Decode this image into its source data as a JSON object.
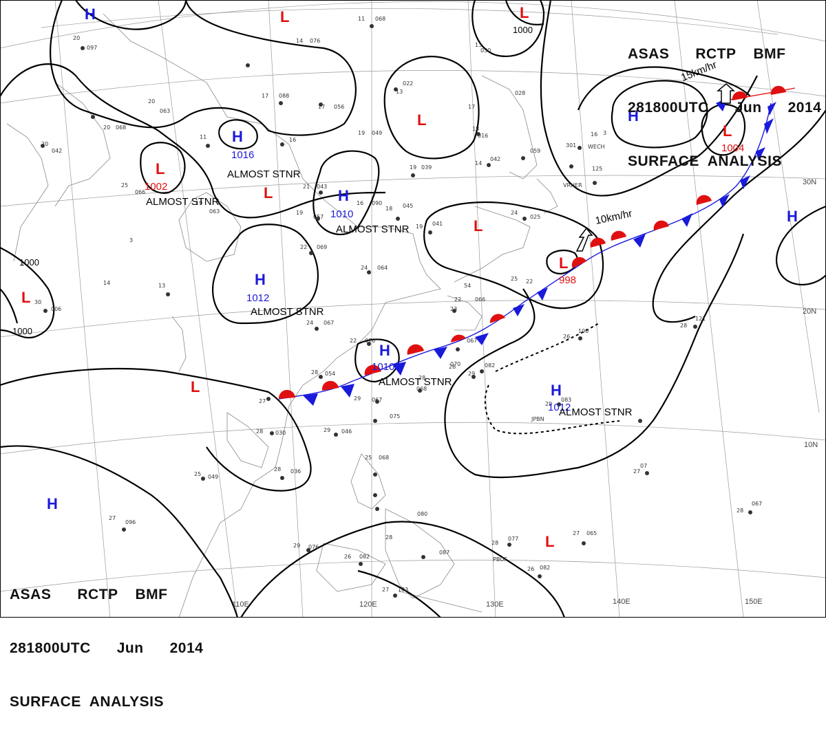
{
  "header_top": {
    "line1": "ASAS      RCTP    BMF",
    "line2": "281800UTC      Jun      2014",
    "line3": "SURFACE  ANALYSIS"
  },
  "header_bottom": {
    "line1": "ASAS      RCTP    BMF",
    "line2": "281800UTC      Jun      2014",
    "line3": "SURFACE  ANALYSIS"
  },
  "colors": {
    "high": "#1a1adb",
    "low": "#e01010",
    "isobar": "#000000",
    "grid": "#9a9a9a",
    "coast": "#888888"
  },
  "graticule": {
    "lon_labels": [
      "110E",
      "120E",
      "130E",
      "140E",
      "150E"
    ],
    "lat_labels": [
      "30N",
      "20N",
      "10N"
    ]
  },
  "pressure_systems": [
    {
      "type": "H",
      "symbol": "H"
    },
    {
      "type": "L",
      "symbol": "L"
    },
    {
      "type": "L",
      "symbol": "L"
    },
    {
      "type": "L",
      "symbol": "L"
    },
    {
      "type": "H",
      "symbol": "H",
      "value": "1016"
    },
    {
      "type": "L",
      "symbol": "L",
      "value": "1002"
    },
    {
      "type": "L",
      "symbol": "L"
    },
    {
      "type": "H",
      "symbol": "H",
      "value": "1010"
    },
    {
      "type": "L",
      "symbol": "L"
    },
    {
      "type": "H",
      "symbol": "H",
      "value": "1012"
    },
    {
      "type": "L",
      "symbol": "L"
    },
    {
      "type": "L",
      "symbol": "L",
      "value": "998"
    },
    {
      "type": "H",
      "symbol": "H",
      "value": "1010"
    },
    {
      "type": "L",
      "symbol": "L"
    },
    {
      "type": "H",
      "symbol": "H",
      "value": "1012"
    },
    {
      "type": "H",
      "symbol": "H"
    },
    {
      "type": "L",
      "symbol": "L",
      "value": "1004"
    },
    {
      "type": "H",
      "symbol": "H"
    },
    {
      "type": "H",
      "symbol": "H"
    },
    {
      "type": "L",
      "symbol": "L"
    }
  ],
  "motion_labels": [
    "ALMOST STNR",
    "ALMOST STNR",
    "ALMOST STNR",
    "ALMOST STNR",
    "ALMOST STNR",
    "ALMOST STNR"
  ],
  "movement_vectors": [
    "10km/hr",
    "15km/hr"
  ],
  "isobar_labels": [
    "1000",
    "1000",
    "1000"
  ],
  "station_codes": [
    "VRHER",
    "WECH",
    "JPBN",
    "PBOF"
  ]
}
